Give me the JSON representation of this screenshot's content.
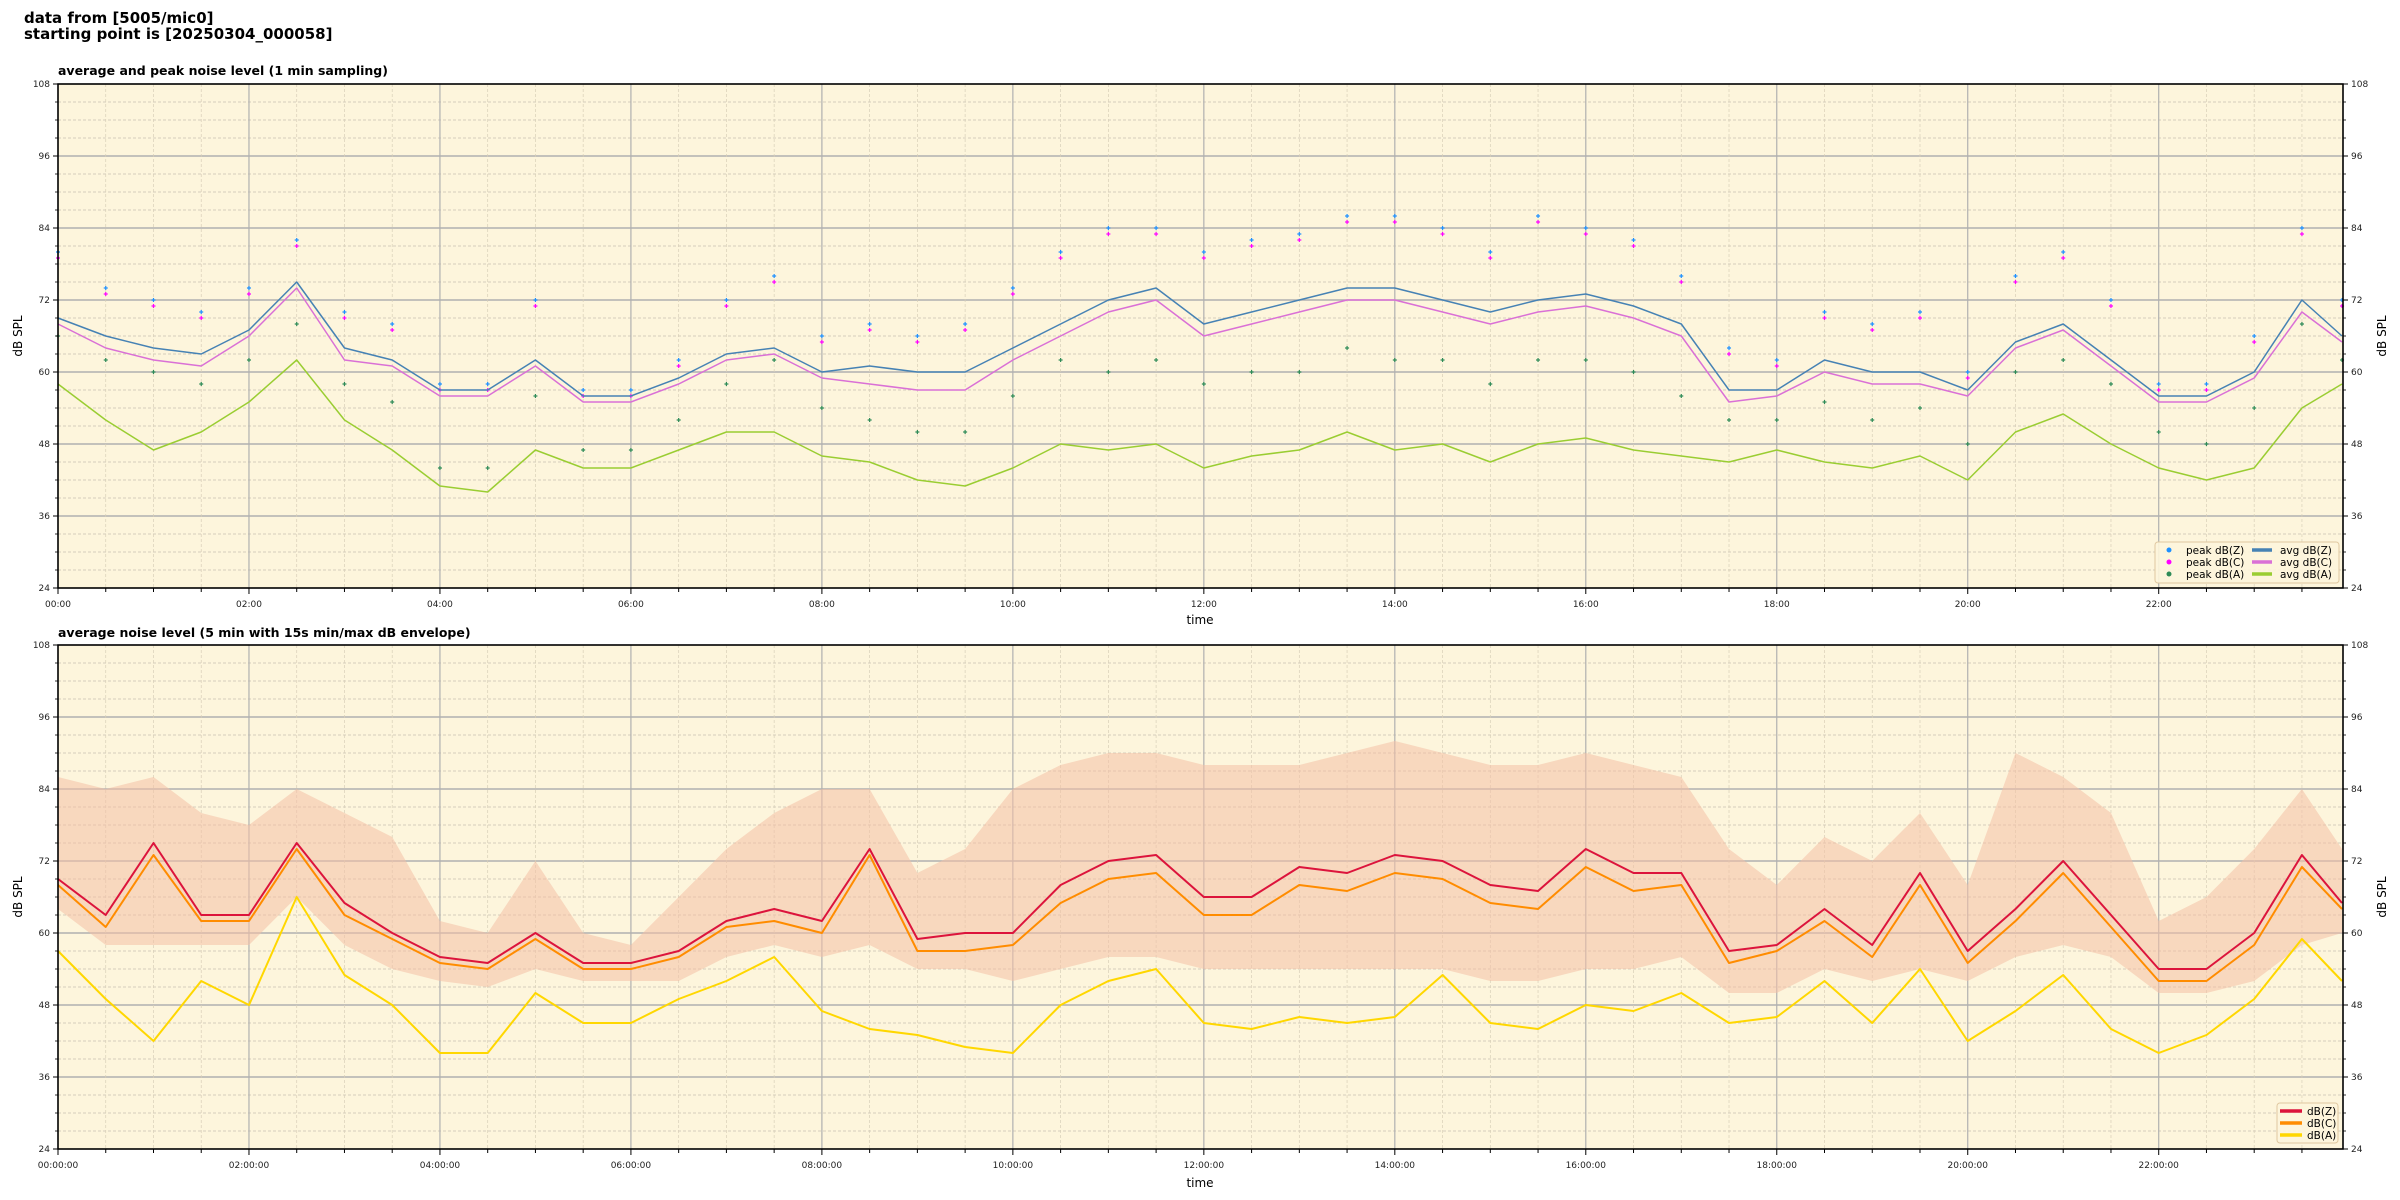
{
  "header": {
    "line1": "data from [5005/mic0]",
    "line2": "starting point is [20250304_000058]"
  },
  "colors": {
    "plot_bg": "#fdf5dc",
    "grid_major": "#b0b0b0",
    "grid_minor": "#c8c0b0",
    "peak_z": "#1e90ff",
    "peak_c": "#ff00ff",
    "peak_a": "#2e8b57",
    "avg_z": "#4682b4",
    "avg_c": "#da70d6",
    "avg_a": "#9acd32",
    "z": "#dc143c",
    "c": "#ff8c00",
    "a": "#ffd700",
    "envelope": "#f4bfa6"
  },
  "chart_data": [
    {
      "type": "line",
      "title": "average and peak noise level (1 min sampling)",
      "xlabel": "time",
      "ylabel": "dB SPL",
      "xlim_hours": [
        0,
        23.93
      ],
      "ylim": [
        24,
        108
      ],
      "yticks": [
        "24",
        "36",
        "48",
        "60",
        "72",
        "84",
        "96",
        "108"
      ],
      "xticks": [
        "00:00",
        "02:00",
        "04:00",
        "06:00",
        "08:00",
        "10:00",
        "12:00",
        "14:00",
        "16:00",
        "18:00",
        "20:00",
        "22:00"
      ],
      "grid": true,
      "legend_placement": "bottom-right",
      "x_hours_step": 0.5,
      "x_last_hours": 23.92,
      "series": [
        {
          "name": "peak dB(Z)",
          "kind": "scatter",
          "color_key": "peak_z",
          "values": [
            80,
            74,
            72,
            70,
            74,
            82,
            70,
            68,
            58,
            58,
            72,
            57,
            57,
            62,
            72,
            76,
            66,
            68,
            66,
            68,
            74,
            80,
            84,
            84,
            80,
            82,
            83,
            86,
            86,
            84,
            80,
            86,
            84,
            82,
            76,
            64,
            62,
            70,
            68,
            70,
            60,
            76,
            80,
            72,
            58,
            58,
            66,
            84,
            72
          ]
        },
        {
          "name": "peak dB(C)",
          "kind": "scatter",
          "color_key": "peak_c",
          "values": [
            79,
            73,
            71,
            69,
            73,
            81,
            69,
            67,
            57,
            57,
            71,
            56,
            56,
            61,
            71,
            75,
            65,
            67,
            65,
            67,
            73,
            79,
            83,
            83,
            79,
            81,
            82,
            85,
            85,
            83,
            79,
            85,
            83,
            81,
            75,
            63,
            61,
            69,
            67,
            69,
            59,
            75,
            79,
            71,
            57,
            57,
            65,
            83,
            71
          ]
        },
        {
          "name": "peak dB(A)",
          "kind": "scatter",
          "color_key": "peak_a",
          "values": [
            66,
            62,
            60,
            58,
            62,
            68,
            58,
            55,
            44,
            44,
            56,
            47,
            47,
            52,
            58,
            62,
            54,
            52,
            50,
            50,
            56,
            62,
            60,
            62,
            58,
            60,
            60,
            64,
            62,
            62,
            58,
            62,
            62,
            60,
            56,
            52,
            52,
            55,
            52,
            54,
            48,
            60,
            62,
            58,
            50,
            48,
            54,
            68,
            62
          ]
        },
        {
          "name": "avg dB(Z)",
          "kind": "line",
          "color_key": "avg_z",
          "values": [
            69,
            66,
            64,
            63,
            67,
            75,
            64,
            62,
            57,
            57,
            62,
            56,
            56,
            59,
            63,
            64,
            60,
            61,
            60,
            60,
            64,
            68,
            72,
            74,
            68,
            70,
            72,
            74,
            74,
            72,
            70,
            72,
            73,
            71,
            68,
            57,
            57,
            62,
            60,
            60,
            57,
            65,
            68,
            62,
            56,
            56,
            60,
            72,
            66
          ]
        },
        {
          "name": "avg dB(C)",
          "kind": "line",
          "color_key": "avg_c",
          "values": [
            68,
            64,
            62,
            61,
            66,
            74,
            62,
            61,
            56,
            56,
            61,
            55,
            55,
            58,
            62,
            63,
            59,
            58,
            57,
            57,
            62,
            66,
            70,
            72,
            66,
            68,
            70,
            72,
            72,
            70,
            68,
            70,
            71,
            69,
            66,
            55,
            56,
            60,
            58,
            58,
            56,
            64,
            67,
            61,
            55,
            55,
            59,
            70,
            65
          ]
        },
        {
          "name": "avg dB(A)",
          "kind": "line",
          "color_key": "avg_a",
          "values": [
            58,
            52,
            47,
            50,
            55,
            62,
            52,
            47,
            41,
            40,
            47,
            44,
            44,
            47,
            50,
            50,
            46,
            45,
            42,
            41,
            44,
            48,
            47,
            48,
            44,
            46,
            47,
            50,
            47,
            48,
            45,
            48,
            49,
            47,
            46,
            45,
            47,
            45,
            44,
            46,
            42,
            50,
            53,
            48,
            44,
            42,
            44,
            54,
            58
          ]
        }
      ]
    },
    {
      "type": "line",
      "title": "average noise level (5 min with 15s min/max dB envelope)",
      "xlabel": "time",
      "ylabel": "dB SPL",
      "xlim_hours": [
        0,
        23.93
      ],
      "ylim": [
        24,
        108
      ],
      "yticks": [
        "24",
        "36",
        "48",
        "60",
        "72",
        "84",
        "96",
        "108"
      ],
      "xticks": [
        "00:00:00",
        "02:00:00",
        "04:00:00",
        "06:00:00",
        "08:00:00",
        "10:00:00",
        "12:00:00",
        "14:00:00",
        "16:00:00",
        "18:00:00",
        "20:00:00",
        "22:00:00"
      ],
      "grid": true,
      "legend_placement": "bottom-right",
      "x_hours_step": 0.5,
      "x_last_hours": 23.92,
      "envelope": {
        "color_key": "envelope",
        "max": [
          86,
          84,
          86,
          80,
          78,
          84,
          80,
          76,
          62,
          60,
          72,
          60,
          58,
          66,
          74,
          80,
          84,
          84,
          70,
          74,
          84,
          88,
          90,
          90,
          88,
          88,
          88,
          90,
          92,
          90,
          88,
          88,
          90,
          88,
          86,
          74,
          68,
          76,
          72,
          80,
          68,
          90,
          86,
          80,
          62,
          66,
          74,
          84,
          74
        ],
        "min": [
          64,
          58,
          58,
          58,
          58,
          66,
          58,
          54,
          52,
          51,
          54,
          52,
          52,
          52,
          56,
          58,
          56,
          58,
          54,
          54,
          52,
          54,
          56,
          56,
          54,
          54,
          54,
          54,
          54,
          54,
          52,
          52,
          54,
          54,
          56,
          50,
          50,
          54,
          52,
          54,
          52,
          56,
          58,
          56,
          50,
          50,
          52,
          58,
          60
        ]
      },
      "series": [
        {
          "name": "dB(Z)",
          "kind": "line",
          "color_key": "z",
          "values": [
            69,
            63,
            75,
            63,
            63,
            75,
            65,
            60,
            56,
            55,
            60,
            55,
            55,
            57,
            62,
            64,
            62,
            74,
            59,
            60,
            60,
            68,
            72,
            73,
            66,
            66,
            71,
            70,
            73,
            72,
            68,
            67,
            74,
            70,
            70,
            57,
            58,
            64,
            58,
            70,
            57,
            64,
            72,
            63,
            54,
            54,
            60,
            73,
            65
          ]
        },
        {
          "name": "dB(C)",
          "kind": "line",
          "color_key": "c",
          "values": [
            68,
            61,
            73,
            62,
            62,
            74,
            63,
            59,
            55,
            54,
            59,
            54,
            54,
            56,
            61,
            62,
            60,
            73,
            57,
            57,
            58,
            65,
            69,
            70,
            63,
            63,
            68,
            67,
            70,
            69,
            65,
            64,
            71,
            67,
            68,
            55,
            57,
            62,
            56,
            68,
            55,
            62,
            70,
            61,
            52,
            52,
            58,
            71,
            64
          ]
        },
        {
          "name": "dB(A)",
          "kind": "line",
          "color_key": "a",
          "values": [
            57,
            49,
            42,
            52,
            48,
            66,
            53,
            48,
            40,
            40,
            50,
            45,
            45,
            49,
            52,
            56,
            47,
            44,
            43,
            41,
            40,
            48,
            52,
            54,
            45,
            44,
            46,
            45,
            46,
            53,
            45,
            44,
            48,
            47,
            50,
            45,
            46,
            52,
            45,
            54,
            42,
            47,
            53,
            44,
            40,
            43,
            49,
            59,
            52
          ]
        }
      ]
    }
  ]
}
